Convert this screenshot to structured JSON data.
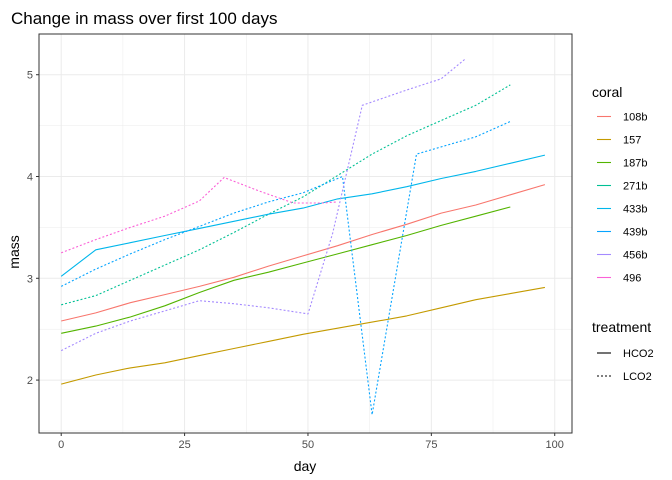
{
  "chart_data": {
    "type": "line",
    "title": "Change in mass over first 100 days",
    "xlabel": "day",
    "ylabel": "mass",
    "xlim": [
      -4.5,
      103.5
    ],
    "ylim": [
      1.48,
      5.4
    ],
    "x_ticks": [
      0,
      25,
      50,
      75,
      100
    ],
    "y_ticks": [
      2,
      3,
      4,
      5
    ],
    "grid": true,
    "legend_position": "right",
    "legend": {
      "color_title": "coral",
      "linetype_title": "treatment",
      "linetype_entries": [
        {
          "label": "HCO2",
          "style": "solid"
        },
        {
          "label": "LCO2",
          "style": "dotted"
        }
      ]
    },
    "series": [
      {
        "name": "108b",
        "color": "#F8766D",
        "treatment": "HCO2",
        "points": [
          [
            0,
            2.58
          ],
          [
            7,
            2.66
          ],
          [
            14,
            2.76
          ],
          [
            21,
            2.84
          ],
          [
            28,
            2.92
          ],
          [
            35,
            3.01
          ],
          [
            42,
            3.12
          ],
          [
            49,
            3.22
          ],
          [
            56,
            3.32
          ],
          [
            63,
            3.43
          ],
          [
            70,
            3.53
          ],
          [
            77,
            3.64
          ],
          [
            84,
            3.72
          ],
          [
            91,
            3.82
          ],
          [
            98,
            3.92
          ]
        ]
      },
      {
        "name": "157",
        "color": "#C49A00",
        "treatment": "HCO2",
        "points": [
          [
            0,
            1.96
          ],
          [
            7,
            2.05
          ],
          [
            14,
            2.12
          ],
          [
            21,
            2.17
          ],
          [
            28,
            2.24
          ],
          [
            35,
            2.31
          ],
          [
            42,
            2.38
          ],
          [
            49,
            2.45
          ],
          [
            56,
            2.51
          ],
          [
            63,
            2.57
          ],
          [
            70,
            2.63
          ],
          [
            77,
            2.71
          ],
          [
            84,
            2.79
          ],
          [
            91,
            2.85
          ],
          [
            98,
            2.91
          ]
        ]
      },
      {
        "name": "187b",
        "color": "#53B400",
        "treatment": "HCO2",
        "points": [
          [
            0,
            2.46
          ],
          [
            7,
            2.53
          ],
          [
            14,
            2.62
          ],
          [
            21,
            2.73
          ],
          [
            28,
            2.86
          ],
          [
            35,
            2.98
          ],
          [
            42,
            3.06
          ],
          [
            49,
            3.15
          ],
          [
            56,
            3.24
          ],
          [
            63,
            3.33
          ],
          [
            70,
            3.42
          ],
          [
            77,
            3.52
          ],
          [
            84,
            3.61
          ],
          [
            91,
            3.7
          ]
        ]
      },
      {
        "name": "271b",
        "color": "#00C094",
        "treatment": "LCO2",
        "points": [
          [
            0,
            2.74
          ],
          [
            7,
            2.83
          ],
          [
            14,
            2.98
          ],
          [
            21,
            3.13
          ],
          [
            28,
            3.28
          ],
          [
            35,
            3.45
          ],
          [
            42,
            3.63
          ],
          [
            49,
            3.8
          ],
          [
            56,
            4.01
          ],
          [
            63,
            4.22
          ],
          [
            70,
            4.4
          ],
          [
            77,
            4.55
          ],
          [
            84,
            4.7
          ],
          [
            91,
            4.9
          ]
        ]
      },
      {
        "name": "433b",
        "color": "#00B6EB",
        "treatment": "HCO2",
        "points": [
          [
            0,
            3.02
          ],
          [
            7,
            3.28
          ],
          [
            14,
            3.35
          ],
          [
            21,
            3.42
          ],
          [
            28,
            3.49
          ],
          [
            35,
            3.56
          ],
          [
            42,
            3.63
          ],
          [
            49,
            3.69
          ],
          [
            56,
            3.78
          ],
          [
            63,
            3.83
          ],
          [
            70,
            3.9
          ],
          [
            77,
            3.98
          ],
          [
            84,
            4.05
          ],
          [
            91,
            4.13
          ],
          [
            98,
            4.21
          ]
        ]
      },
      {
        "name": "439b",
        "color": "#06A4FF",
        "treatment": "LCO2",
        "points": [
          [
            0,
            2.92
          ],
          [
            7,
            3.09
          ],
          [
            14,
            3.24
          ],
          [
            21,
            3.38
          ],
          [
            28,
            3.51
          ],
          [
            35,
            3.64
          ],
          [
            42,
            3.75
          ],
          [
            49,
            3.84
          ],
          [
            57,
            4.0
          ],
          [
            63,
            1.66
          ],
          [
            72,
            4.22
          ],
          [
            84,
            4.39
          ],
          [
            91,
            4.54
          ]
        ]
      },
      {
        "name": "456b",
        "color": "#A58AFF",
        "treatment": "LCO2",
        "points": [
          [
            0,
            2.29
          ],
          [
            7,
            2.46
          ],
          [
            14,
            2.58
          ],
          [
            21,
            2.68
          ],
          [
            28,
            2.78
          ],
          [
            35,
            2.75
          ],
          [
            42,
            2.71
          ],
          [
            50,
            2.65
          ],
          [
            55,
            3.44
          ],
          [
            61,
            4.7
          ],
          [
            70,
            4.85
          ],
          [
            77,
            4.96
          ],
          [
            82,
            5.16
          ]
        ]
      },
      {
        "name": "496",
        "color": "#FB61D7",
        "treatment": "LCO2",
        "points": [
          [
            0,
            3.25
          ],
          [
            7,
            3.38
          ],
          [
            14,
            3.5
          ],
          [
            21,
            3.61
          ],
          [
            28,
            3.76
          ],
          [
            33,
            3.99
          ],
          [
            40,
            3.86
          ],
          [
            47,
            3.74
          ],
          [
            53,
            3.74
          ],
          [
            56,
            3.75
          ]
        ]
      }
    ]
  }
}
